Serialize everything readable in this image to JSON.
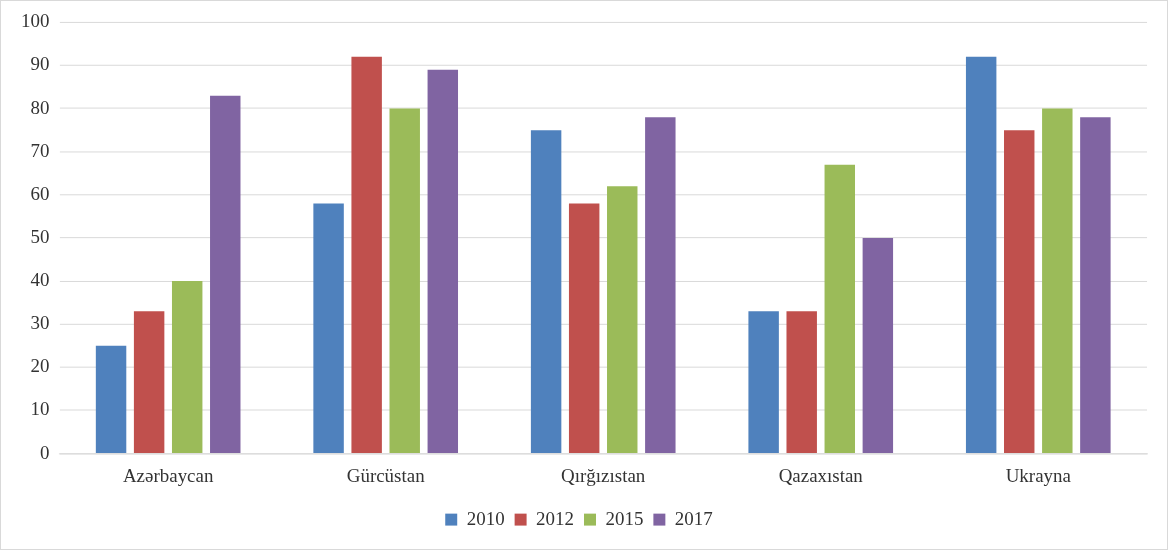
{
  "chart_data": {
    "type": "bar",
    "categories": [
      "Azərbaycan",
      "Gürcüstan",
      "Qırğızıstan",
      "Qazaxıstan",
      "Ukrayna"
    ],
    "series": [
      {
        "name": "2010",
        "color": "#4f81bd",
        "values": [
          25,
          58,
          75,
          33,
          92
        ]
      },
      {
        "name": "2012",
        "color": "#c0504d",
        "values": [
          33,
          92,
          58,
          33,
          75
        ]
      },
      {
        "name": "2015",
        "color": "#9bbb59",
        "values": [
          40,
          80,
          62,
          67,
          80
        ]
      },
      {
        "name": "2017",
        "color": "#8064a2",
        "values": [
          83,
          89,
          78,
          50,
          78
        ]
      }
    ],
    "ylim": [
      0,
      100
    ],
    "yticks": [
      0,
      10,
      20,
      30,
      40,
      50,
      60,
      70,
      80,
      90,
      100
    ],
    "grid": "y",
    "legend": "bottom"
  }
}
